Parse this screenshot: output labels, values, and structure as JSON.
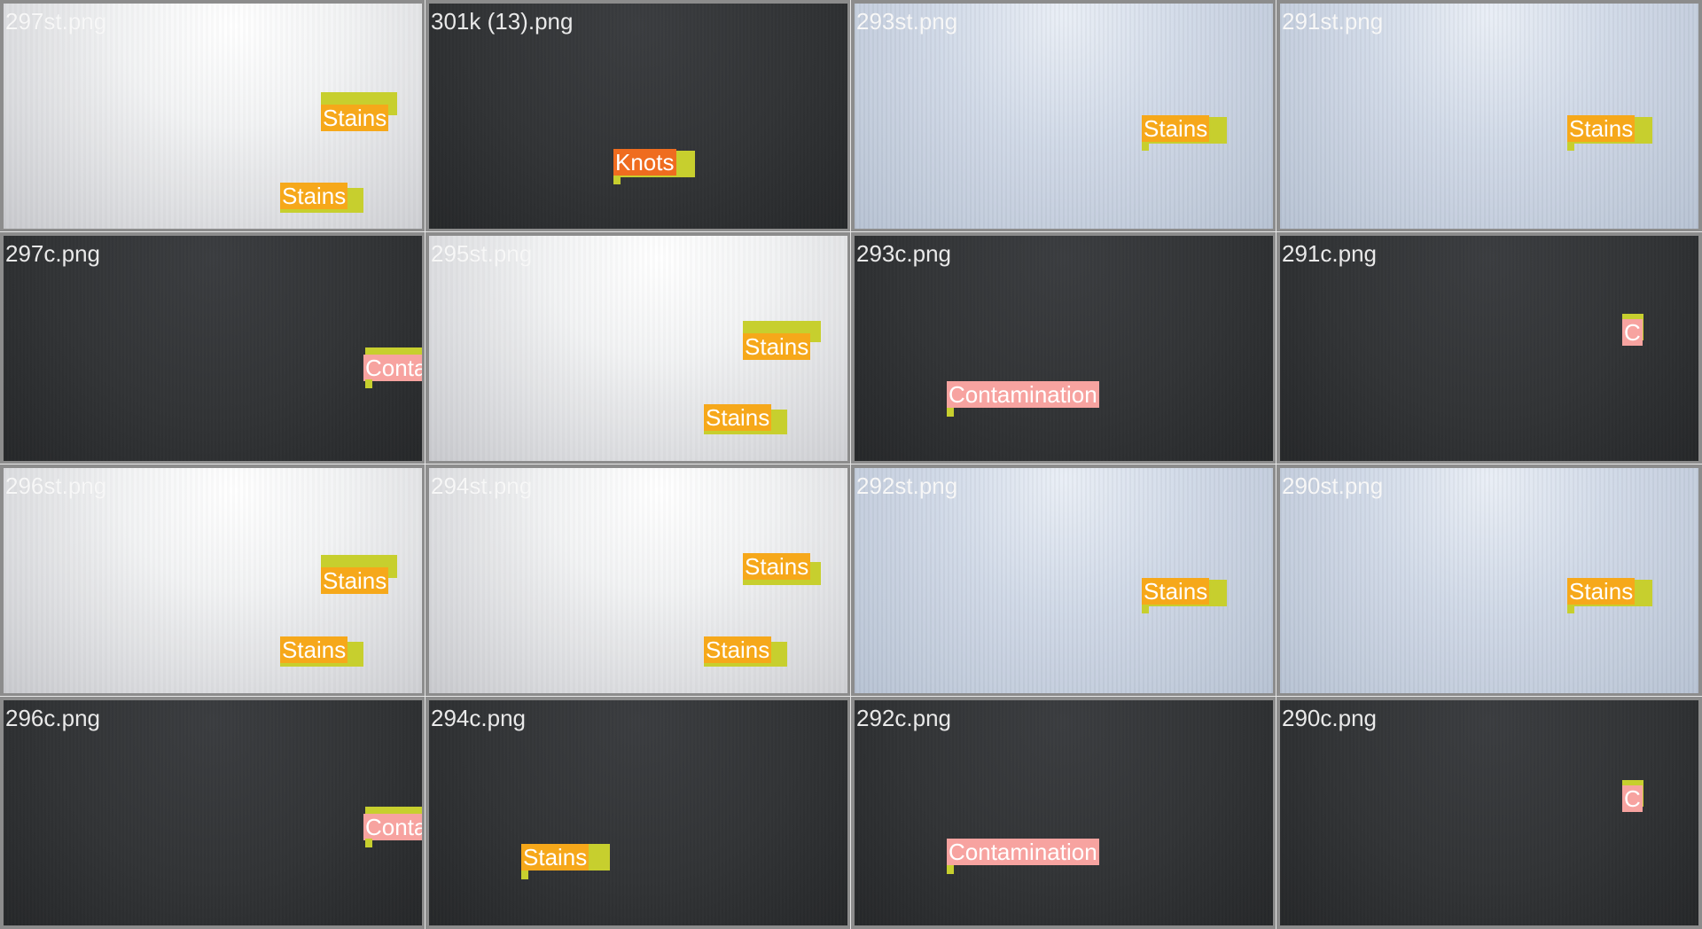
{
  "colors": {
    "stains": "#f6a81a",
    "knots": "#ef6c1f",
    "contamination": "#f7a3a0",
    "sticker": "#c7cf2e",
    "tile_border": "#8c8c8c"
  },
  "tiles": [
    {
      "filename": "297st.png",
      "labels": [
        "Stains",
        "Stains"
      ]
    },
    {
      "filename": "301k (13).png",
      "labels": [
        "Knots"
      ]
    },
    {
      "filename": "293st.png",
      "labels": [
        "Stains"
      ]
    },
    {
      "filename": "291st.png",
      "labels": [
        "Stains"
      ]
    },
    {
      "filename": "297c.png",
      "labels": [
        "Contamination"
      ]
    },
    {
      "filename": "295st.png",
      "labels": [
        "Stains",
        "Stains"
      ]
    },
    {
      "filename": "293c.png",
      "labels": [
        "Contamination"
      ]
    },
    {
      "filename": "291c.png",
      "labels": [
        "C"
      ]
    },
    {
      "filename": "296st.png",
      "labels": [
        "Stains",
        "Stains"
      ]
    },
    {
      "filename": "294st.png",
      "labels": [
        "Stains",
        "Stains"
      ]
    },
    {
      "filename": "292st.png",
      "labels": [
        "Stains"
      ]
    },
    {
      "filename": "290st.png",
      "labels": [
        "Stains"
      ]
    },
    {
      "filename": "296c.png",
      "labels": [
        "Contamination"
      ]
    },
    {
      "filename": "294c.png",
      "labels": [
        "Stains"
      ]
    },
    {
      "filename": "292c.png",
      "labels": [
        "Contamination"
      ]
    },
    {
      "filename": "290c.png",
      "labels": [
        "C"
      ]
    }
  ]
}
